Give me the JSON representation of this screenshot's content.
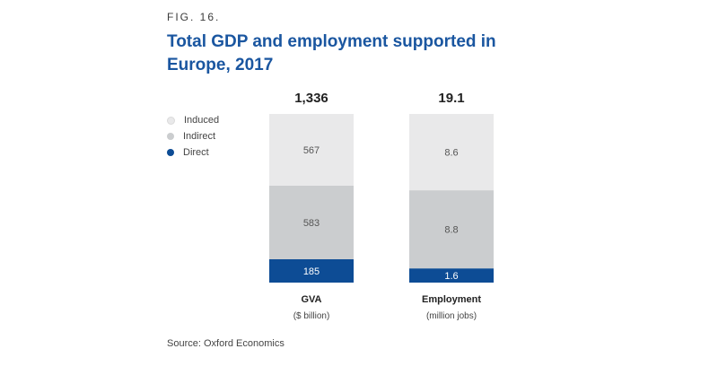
{
  "figure_label": "FIG. 16.",
  "source": "Source: Oxford Economics",
  "colors": {
    "title": "#1a56a0",
    "induced": "#e9e9ea",
    "indirect": "#cbcdcf",
    "direct": "#0d4c95"
  },
  "chart_data": {
    "type": "bar",
    "stacked": true,
    "title": "Total GDP and employment supported in Europe, 2017",
    "legend": [
      "Induced",
      "Indirect",
      "Direct"
    ],
    "legend_position": "left",
    "categories": [
      {
        "label": "GVA",
        "sublabel": "($ billion)",
        "total": "1,336"
      },
      {
        "label": "Employment",
        "sublabel": "(million jobs)",
        "total": "19.1"
      }
    ],
    "series": [
      {
        "name": "Direct",
        "values": [
          185,
          1.6
        ],
        "labels": [
          "185",
          "1.6"
        ]
      },
      {
        "name": "Indirect",
        "values": [
          583,
          8.8
        ],
        "labels": [
          "583",
          "8.8"
        ]
      },
      {
        "name": "Induced",
        "values": [
          567,
          8.6
        ],
        "labels": [
          "567",
          "8.6"
        ]
      }
    ]
  }
}
